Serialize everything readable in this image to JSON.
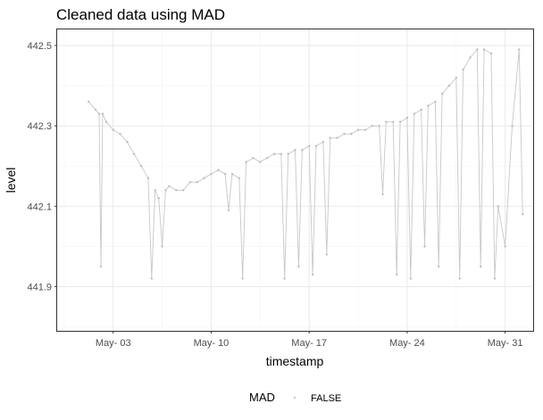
{
  "chart_data": {
    "type": "line",
    "title": "Cleaned data using MAD",
    "xlabel": "timestamp",
    "ylabel": "level",
    "x_ticks": [
      {
        "date": "2019-05-03",
        "label": "May- 03"
      },
      {
        "date": "2019-05-10",
        "label": "May- 10"
      },
      {
        "date": "2019-05-17",
        "label": "May- 17"
      },
      {
        "date": "2019-05-24",
        "label": "May- 24"
      },
      {
        "date": "2019-05-31",
        "label": "May- 31"
      }
    ],
    "y_ticks": [
      441.9,
      442.1,
      442.3,
      442.5
    ],
    "xlim": [
      "2019-04-29",
      "2019-06-02"
    ],
    "ylim": [
      441.79,
      442.54
    ],
    "grid": true,
    "legend": {
      "title": "MAD",
      "entries": [
        "FALSE"
      ],
      "position": "bottom"
    },
    "colors": {
      "series": "#bdbdbd",
      "grid": "#ebebeb",
      "border": "#333333"
    },
    "series": [
      {
        "label": "FALSE",
        "points": [
          [
            "2019-05-01 06:00",
            442.36
          ],
          [
            "2019-05-01 18:00",
            442.34
          ],
          [
            "2019-05-02 00:00",
            442.33
          ],
          [
            "2019-05-02 03:00",
            441.95
          ],
          [
            "2019-05-02 06:00",
            442.33
          ],
          [
            "2019-05-02 12:00",
            442.31
          ],
          [
            "2019-05-03 00:00",
            442.29
          ],
          [
            "2019-05-03 12:00",
            442.28
          ],
          [
            "2019-05-04 00:00",
            442.26
          ],
          [
            "2019-05-04 12:00",
            442.23
          ],
          [
            "2019-05-05 00:00",
            442.2
          ],
          [
            "2019-05-05 12:00",
            442.17
          ],
          [
            "2019-05-05 18:00",
            441.92
          ],
          [
            "2019-05-06 00:00",
            442.14
          ],
          [
            "2019-05-06 06:00",
            442.12
          ],
          [
            "2019-05-06 12:00",
            442.0
          ],
          [
            "2019-05-06 18:00",
            442.14
          ],
          [
            "2019-05-07 00:00",
            442.15
          ],
          [
            "2019-05-07 12:00",
            442.14
          ],
          [
            "2019-05-08 00:00",
            442.14
          ],
          [
            "2019-05-08 12:00",
            442.16
          ],
          [
            "2019-05-09 00:00",
            442.16
          ],
          [
            "2019-05-09 12:00",
            442.17
          ],
          [
            "2019-05-10 00:00",
            442.18
          ],
          [
            "2019-05-10 12:00",
            442.19
          ],
          [
            "2019-05-11 00:00",
            442.18
          ],
          [
            "2019-05-11 06:00",
            442.09
          ],
          [
            "2019-05-11 12:00",
            442.18
          ],
          [
            "2019-05-12 00:00",
            442.17
          ],
          [
            "2019-05-12 06:00",
            441.92
          ],
          [
            "2019-05-12 12:00",
            442.21
          ],
          [
            "2019-05-13 00:00",
            442.22
          ],
          [
            "2019-05-13 12:00",
            442.21
          ],
          [
            "2019-05-14 00:00",
            442.22
          ],
          [
            "2019-05-14 12:00",
            442.23
          ],
          [
            "2019-05-15 00:00",
            442.23
          ],
          [
            "2019-05-15 06:00",
            441.92
          ],
          [
            "2019-05-15 12:00",
            442.23
          ],
          [
            "2019-05-16 00:00",
            442.24
          ],
          [
            "2019-05-16 06:00",
            441.95
          ],
          [
            "2019-05-16 12:00",
            442.24
          ],
          [
            "2019-05-17 00:00",
            442.25
          ],
          [
            "2019-05-17 06:00",
            441.93
          ],
          [
            "2019-05-17 12:00",
            442.25
          ],
          [
            "2019-05-18 00:00",
            442.26
          ],
          [
            "2019-05-18 06:00",
            441.98
          ],
          [
            "2019-05-18 12:00",
            442.27
          ],
          [
            "2019-05-19 00:00",
            442.27
          ],
          [
            "2019-05-19 12:00",
            442.28
          ],
          [
            "2019-05-20 00:00",
            442.28
          ],
          [
            "2019-05-20 12:00",
            442.29
          ],
          [
            "2019-05-21 00:00",
            442.29
          ],
          [
            "2019-05-21 12:00",
            442.3
          ],
          [
            "2019-05-22 00:00",
            442.3
          ],
          [
            "2019-05-22 06:00",
            442.13
          ],
          [
            "2019-05-22 12:00",
            442.31
          ],
          [
            "2019-05-23 00:00",
            442.31
          ],
          [
            "2019-05-23 06:00",
            441.93
          ],
          [
            "2019-05-23 12:00",
            442.31
          ],
          [
            "2019-05-24 00:00",
            442.32
          ],
          [
            "2019-05-24 06:00",
            441.92
          ],
          [
            "2019-05-24 12:00",
            442.33
          ],
          [
            "2019-05-25 00:00",
            442.34
          ],
          [
            "2019-05-25 06:00",
            442.0
          ],
          [
            "2019-05-25 12:00",
            442.35
          ],
          [
            "2019-05-26 00:00",
            442.36
          ],
          [
            "2019-05-26 06:00",
            441.95
          ],
          [
            "2019-05-26 12:00",
            442.38
          ],
          [
            "2019-05-27 00:00",
            442.4
          ],
          [
            "2019-05-27 12:00",
            442.42
          ],
          [
            "2019-05-27 18:00",
            441.92
          ],
          [
            "2019-05-28 00:00",
            442.44
          ],
          [
            "2019-05-28 12:00",
            442.47
          ],
          [
            "2019-05-29 00:00",
            442.49
          ],
          [
            "2019-05-29 06:00",
            441.95
          ],
          [
            "2019-05-29 12:00",
            442.49
          ],
          [
            "2019-05-30 00:00",
            442.48
          ],
          [
            "2019-05-30 06:00",
            441.92
          ],
          [
            "2019-05-30 12:00",
            442.1
          ],
          [
            "2019-05-31 00:00",
            442.0
          ],
          [
            "2019-05-31 12:00",
            442.3
          ],
          [
            "2019-06-01 00:00",
            442.49
          ],
          [
            "2019-06-01 06:00",
            442.08
          ]
        ]
      }
    ]
  }
}
